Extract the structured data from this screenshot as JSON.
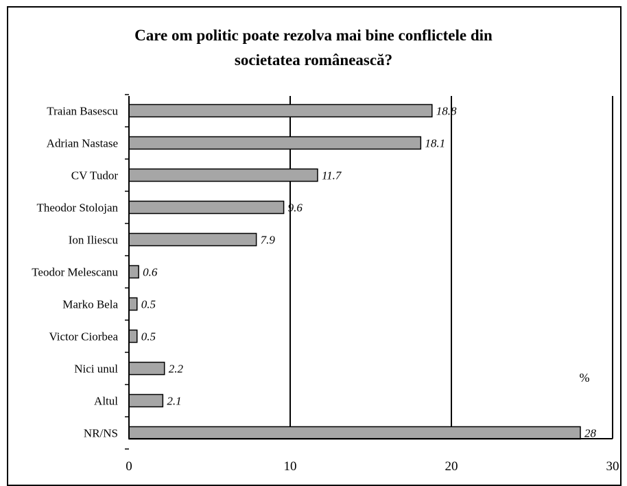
{
  "chart_data": {
    "type": "bar",
    "orientation": "horizontal",
    "title_lines": [
      "Care om politic poate rezolva mai bine conflictele din",
      "societatea românească?"
    ],
    "categories": [
      "Traian Basescu",
      "Adrian Nastase",
      "CV Tudor",
      "Theodor Stolojan",
      "Ion Iliescu",
      "Teodor Melescanu",
      "Marko Bela",
      "Victor Ciorbea",
      "Nici unul",
      "Altul",
      "NR/NS"
    ],
    "values": [
      18.8,
      18.1,
      11.7,
      9.6,
      7.9,
      0.6,
      0.5,
      0.5,
      2.2,
      2.1,
      28
    ],
    "value_labels": [
      "18.8",
      "18.1",
      "11.7",
      "9.6",
      "7.9",
      "0.6",
      "0.5",
      "0.5",
      "2.2",
      "2.1",
      "28"
    ],
    "x_ticks": [
      "0",
      "10",
      "20",
      "30"
    ],
    "xlim": [
      0,
      30
    ],
    "unit": "%",
    "grid": "vertical major gridlines",
    "bar_color": "#a6a6a6",
    "bar_edge_color": "#000000"
  }
}
